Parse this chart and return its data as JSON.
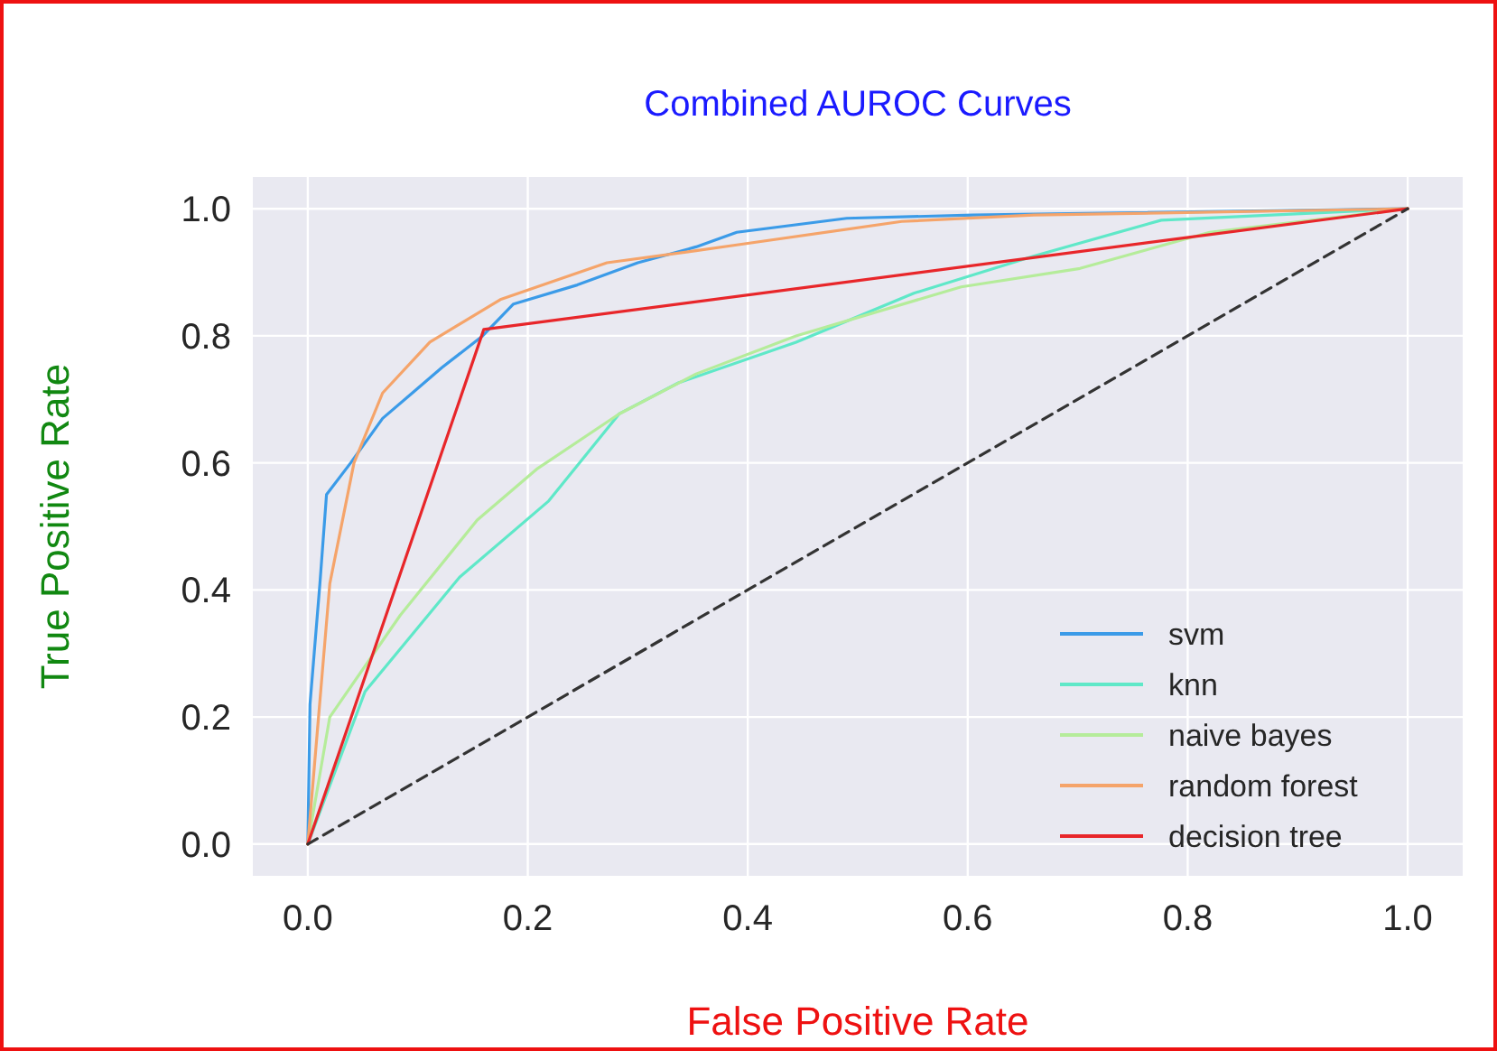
{
  "chart_data": {
    "type": "line",
    "title": "Combined AUROC Curves",
    "xlabel": "False Positive Rate",
    "ylabel": "True Positive Rate",
    "xlim": [
      -0.05,
      1.05
    ],
    "ylim": [
      -0.05,
      1.05
    ],
    "xticks": [
      {
        "value": 0,
        "label": "0.0"
      },
      0.2,
      0.4,
      0.6,
      0.8,
      {
        "value": 1,
        "label": "1.0"
      }
    ],
    "yticks": [
      {
        "value": 0,
        "label": "0.0"
      },
      0.2,
      0.4,
      0.6,
      0.8,
      {
        "value": 1,
        "label": "1.0"
      }
    ],
    "grid": true,
    "legend": "bottom right",
    "series": [
      {
        "name": "svm",
        "color": "#3b9be8",
        "x": [
          0,
          0.002,
          0.011,
          0.017,
          0.039,
          0.068,
          0.095,
          0.122,
          0.159,
          0.187,
          0.245,
          0.3,
          0.353,
          0.39,
          0.49,
          0.605,
          1
        ],
        "values": [
          0,
          0.22,
          0.41,
          0.55,
          0.6,
          0.67,
          0.71,
          0.75,
          0.8,
          0.85,
          0.88,
          0.915,
          0.94,
          0.963,
          0.985,
          0.99,
          1
        ]
      },
      {
        "name": "knn",
        "color": "#5fe8c8",
        "x": [
          0,
          0.052,
          0.138,
          0.219,
          0.283,
          0.337,
          0.444,
          0.551,
          0.659,
          0.776,
          1
        ],
        "values": [
          0,
          0.24,
          0.42,
          0.54,
          0.677,
          0.726,
          0.79,
          0.867,
          0.925,
          0.982,
          1
        ]
      },
      {
        "name": "naive bayes",
        "color": "#b5ec9a",
        "x": [
          0,
          0.02,
          0.084,
          0.154,
          0.208,
          0.283,
          0.353,
          0.444,
          0.594,
          0.702,
          0.82,
          1
        ],
        "values": [
          0,
          0.2,
          0.36,
          0.51,
          0.59,
          0.677,
          0.74,
          0.8,
          0.877,
          0.906,
          0.963,
          1
        ]
      },
      {
        "name": "random forest",
        "color": "#f5a46a",
        "x": [
          0,
          0.02,
          0.042,
          0.068,
          0.111,
          0.175,
          0.272,
          0.353,
          0.39,
          0.54,
          0.66,
          1
        ],
        "values": [
          0,
          0.41,
          0.6,
          0.71,
          0.79,
          0.857,
          0.915,
          0.934,
          0.943,
          0.98,
          0.99,
          1
        ]
      },
      {
        "name": "decision tree",
        "color": "#e8262a",
        "x": [
          0,
          0.16,
          1
        ],
        "values": [
          0,
          0.81,
          1
        ]
      },
      {
        "color": "#333333",
        "line_style": "dashed",
        "x": [
          0,
          1
        ],
        "values": [
          0,
          1
        ]
      }
    ]
  }
}
